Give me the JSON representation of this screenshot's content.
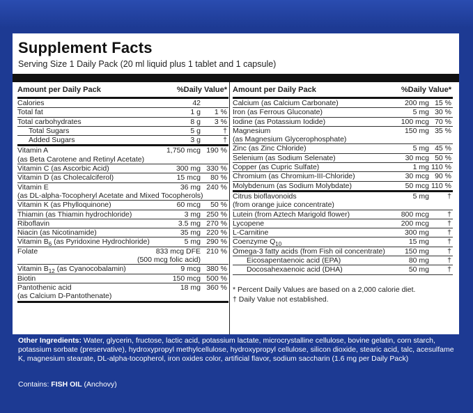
{
  "title": "Supplement Facts",
  "serving": "Serving Size 1 Daily Pack  (20 ml liquid plus 1 tablet and 1 capsule)",
  "left_header": {
    "amount": "Amount per Daily Pack",
    "dv": "%Daily Value*"
  },
  "right_header": {
    "amount": "Amount per Daily Pack",
    "dv": "%Daily Value*"
  },
  "left_rows": [
    {
      "name": "Calories",
      "amt": "42",
      "dv": ""
    },
    {
      "name": "Total fat",
      "amt": "1 g",
      "dv": "1 %"
    },
    {
      "name": "Total carbohydrates",
      "amt": "8 g",
      "dv": "3 %"
    },
    {
      "name": "Total Sugars",
      "amt": "5 g",
      "dv": "†"
    },
    {
      "name": "Added Sugars",
      "amt": "3 g",
      "dv": "†"
    },
    {
      "name": "Vitamin A",
      "name2": "(as Beta Carotene and Retinyl Acetate)",
      "amt": "1,750 mcg",
      "dv": "190 %"
    },
    {
      "name": "Vitamin C (as Ascorbic Acid)",
      "amt": "300 mg",
      "dv": "330 %"
    },
    {
      "name": "Vitamin D (as Cholecalciferol)",
      "amt": "15 mcg",
      "dv": "80 %"
    },
    {
      "name": "Vitamin E",
      "name2": "(as DL-alpha-Tocopheryl Acetate and Mixed Tocopherols)",
      "amt": "36 mg",
      "dv": "240 %"
    },
    {
      "name": "Vitamin K (as Phylloquinone)",
      "amt": "60 mcg",
      "dv": "50 %"
    },
    {
      "name": "Thiamin (as Thiamin hydrochloride)",
      "amt": "3 mg",
      "dv": "250 %"
    },
    {
      "name": "Riboflavin",
      "amt": "3.5 mg",
      "dv": "270 %"
    },
    {
      "name": "Niacin (as Nicotinamide)",
      "amt": "35 mg",
      "dv": "220 %"
    },
    {
      "name_a": "Vitamin B",
      "name_sub": "6",
      "name_b": " (as Pyridoxine Hydrochloride)",
      "amt": "5 mg",
      "dv": "290 %"
    },
    {
      "name": "Folate",
      "amt": "833 mcg DFE",
      "amt2": "(500 mcg folic acid)",
      "dv": "210 %"
    },
    {
      "name_a": "Vitamin B",
      "name_sub": "12",
      "name_b": " (as Cyanocobalamin)",
      "amt": "9 mcg",
      "dv": "380 %"
    },
    {
      "name": "Biotin",
      "amt": "150 mcg",
      "dv": "500 %"
    },
    {
      "name": "Pantothenic acid",
      "name2": "(as Calcium D-Pantothenate)",
      "amt": "18 mg",
      "dv": "360 %"
    }
  ],
  "right_rows": [
    {
      "name": "Calcium (as Calcium Carbonate)",
      "amt": "200 mg",
      "dv": "15 %"
    },
    {
      "name": "Iron (as Ferrous Gluconate)",
      "amt": "5 mg",
      "dv": "30 %"
    },
    {
      "name": "Iodine (as Potassium Iodide)",
      "amt": "100 mcg",
      "dv": "70 %"
    },
    {
      "name": "Magnesium",
      "name2": "(as Magnesium Glycerophosphate)",
      "amt": "150 mg",
      "dv": "35 %"
    },
    {
      "name": "Zinc (as Zinc Chloride)",
      "amt": "5 mg",
      "dv": "45 %"
    },
    {
      "name": "Selenium (as Sodium Selenate)",
      "amt": "30 mcg",
      "dv": "50 %"
    },
    {
      "name": "Copper (as Cupric Sulfate)",
      "amt": "1 mg",
      "dv": "110 %"
    },
    {
      "name": "Chromium (as Chromium-III-Chloride)",
      "amt": "30 mcg",
      "dv": "90 %"
    },
    {
      "name": "Molybdenum (as Sodium Molybdate)",
      "amt": "50 mcg",
      "dv": "110 %"
    },
    {
      "name": "Citrus bioflavonoids",
      "name2": "(from orange juice concentrate)",
      "amt": "5 mg",
      "dv": "†"
    },
    {
      "name": "Lutein (from Aztech Marigold flower)",
      "amt": "800 mcg",
      "dv": "†"
    },
    {
      "name": "Lycopene",
      "amt": "200 mcg",
      "dv": "†"
    },
    {
      "name": "L-Carnitine",
      "amt": "300 mg",
      "dv": "†"
    },
    {
      "name_a": "Coenzyme Q",
      "name_sub": "10",
      "name_b": "",
      "amt": "15 mg",
      "dv": "†"
    },
    {
      "name": "Omega-3 fatty acids (from Fish oil concentrate)",
      "amt": "150 mg",
      "dv": "†"
    },
    {
      "name": "Eicosapentaenoic acid (EPA)",
      "amt": "80 mg",
      "dv": "†"
    },
    {
      "name": "Docosahexaenoic acid (DHA)",
      "amt": "50 mg",
      "dv": "†"
    }
  ],
  "footnote1": "* Percent Daily Values are based on a 2,000 calorie diet.",
  "footnote2": "† Daily Value not established.",
  "ingredients_label": "Other Ingredients:",
  "ingredients_text": " Water, glycerin, fructose, lactic acid, potassium lactate, microcrystalline cellulose, bovine gelatin, corn starch, potassium sorbate (preservative), hydroxypropyl methylcellulose, hydroxypropyl cellulose, silicon dioxide, stearic acid, talc, acesulfame K, magnesium stearate, DL-alpha-tocopherol, iron oxides color, artificial flavor, sodium saccharin (1.6 mg per Daily Pack)",
  "contains_label": "Contains: ",
  "contains_bold": "FISH OIL",
  "contains_rest": " (Anchovy)"
}
